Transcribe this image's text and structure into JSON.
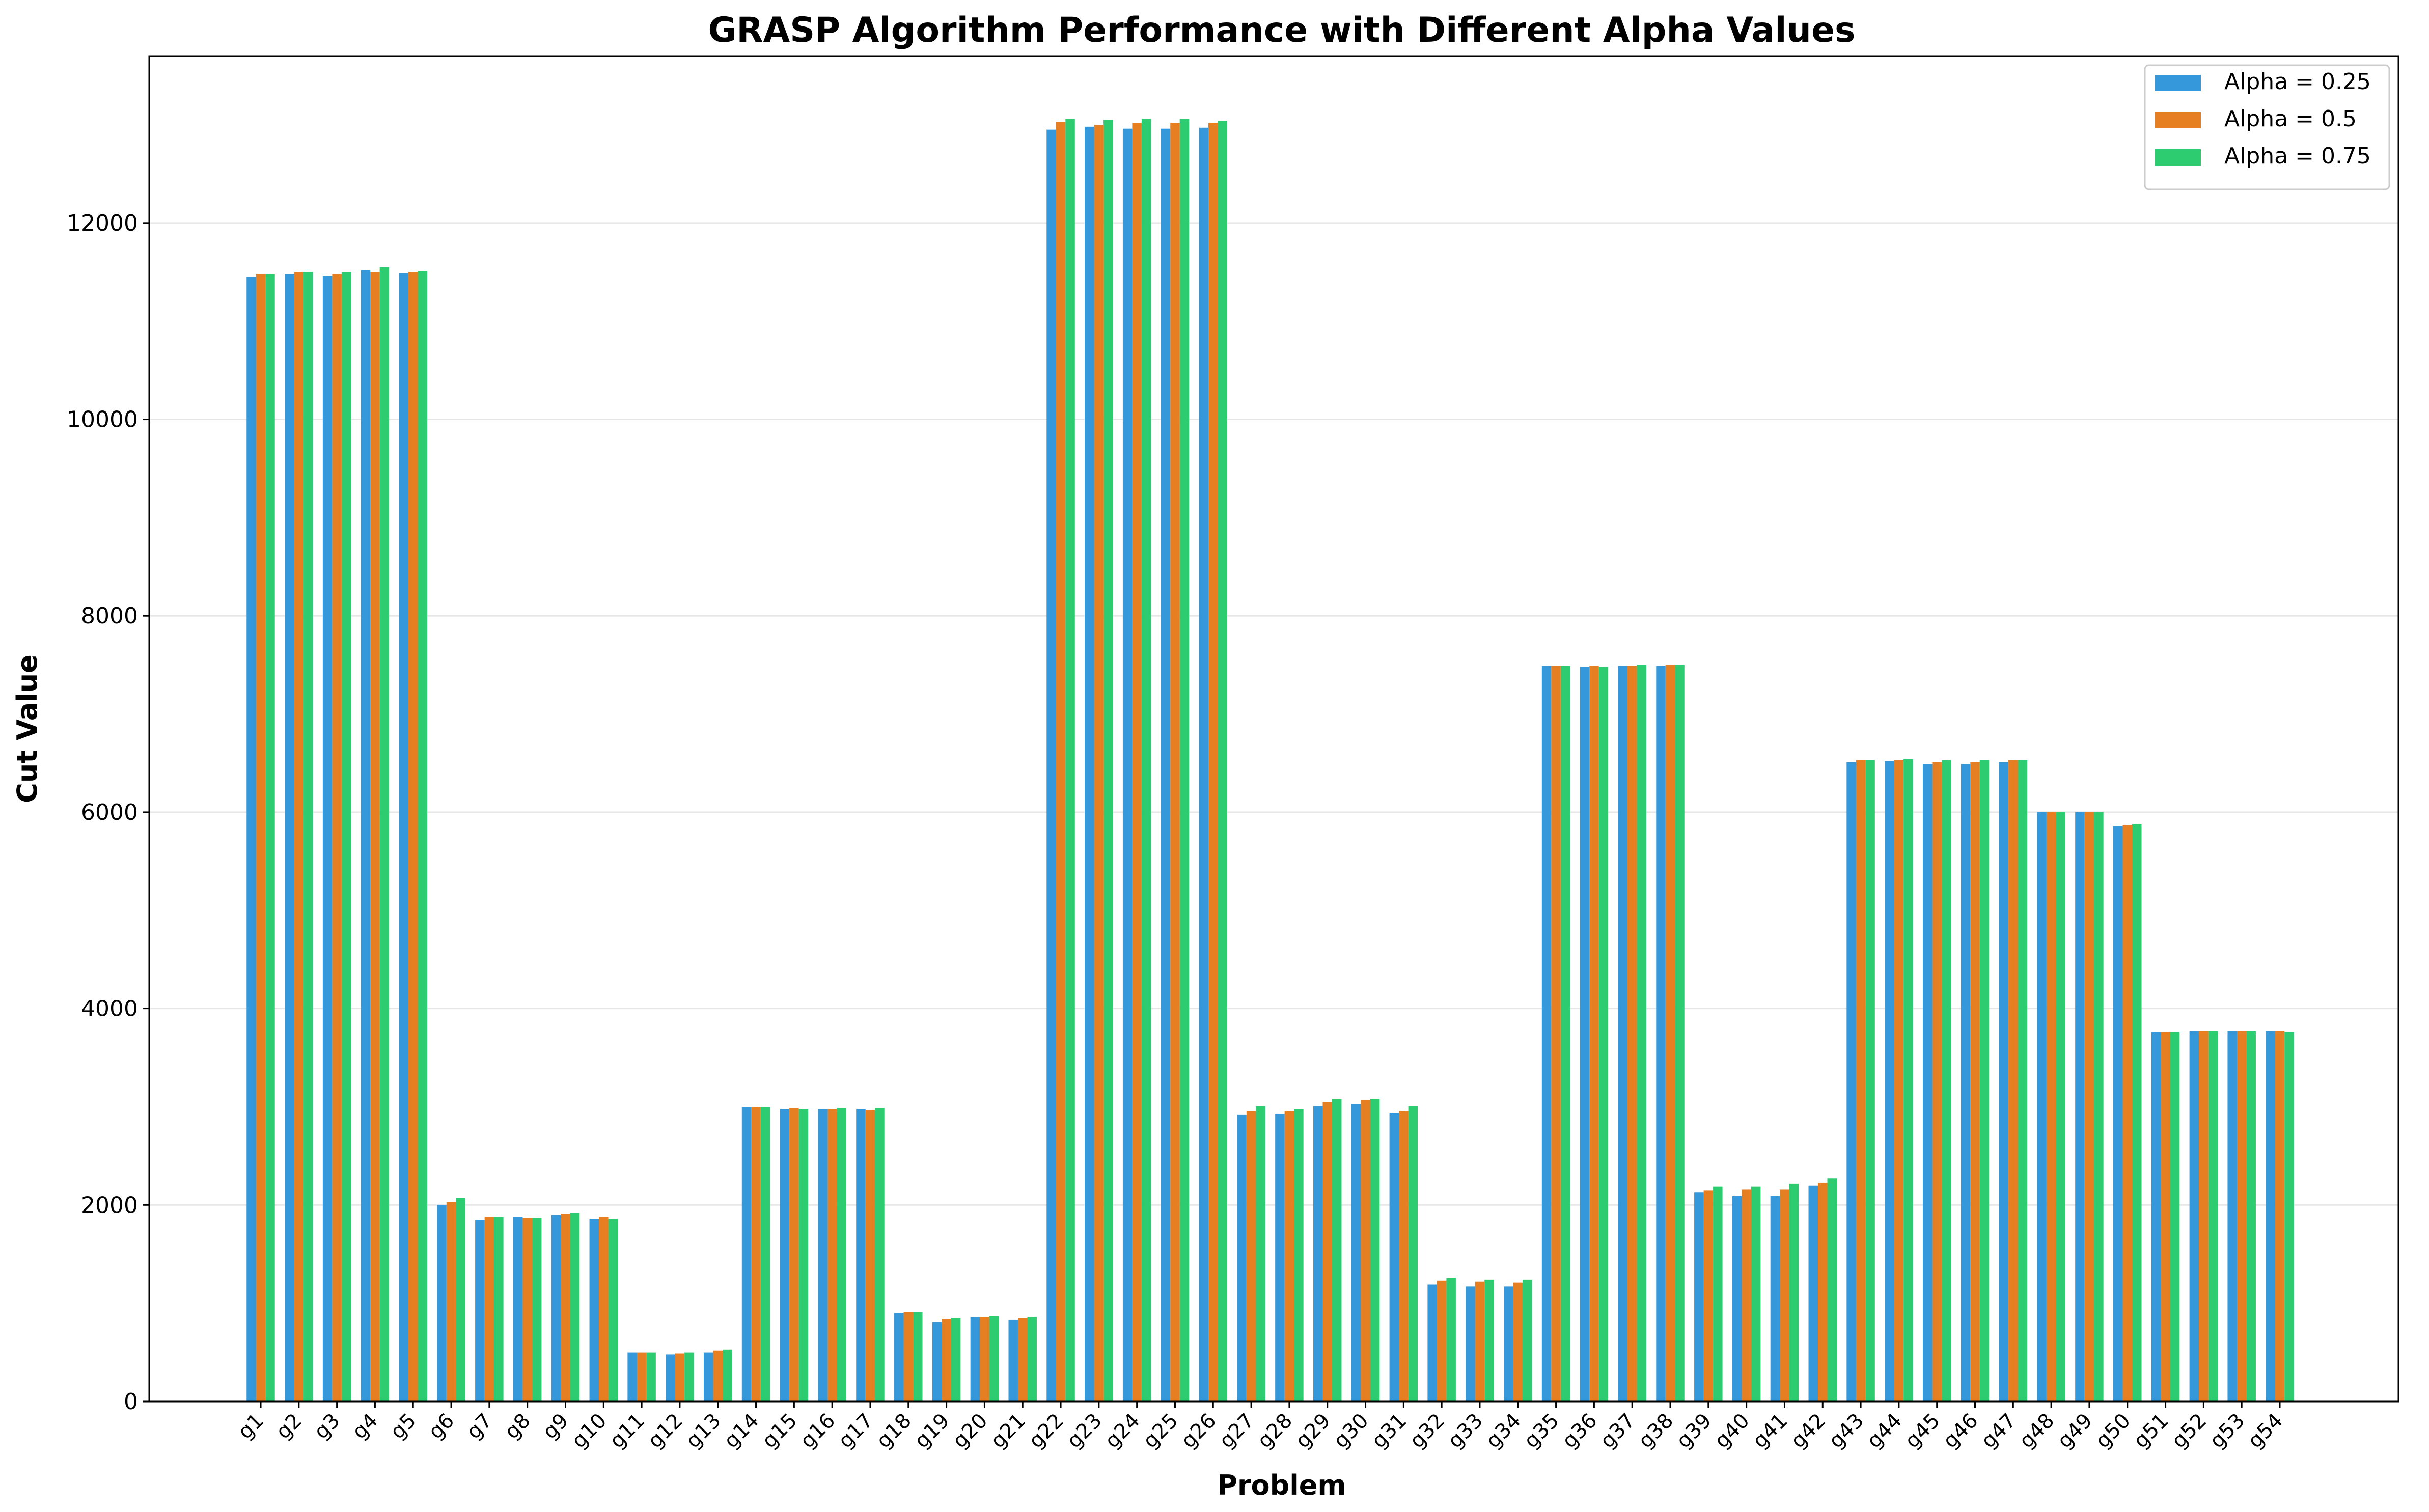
{
  "chart_data": {
    "type": "bar",
    "title": "GRASP Algorithm Performance with Different Alpha Values",
    "xlabel": "Problem",
    "ylabel": "Cut Value",
    "ylim": [
      0,
      13700
    ],
    "yticks": [
      0,
      2000,
      4000,
      6000,
      8000,
      10000,
      12000
    ],
    "grid": "horizontal",
    "legend_position": "top-right",
    "categories": [
      "g1",
      "g2",
      "g3",
      "g4",
      "g5",
      "g6",
      "g7",
      "g8",
      "g9",
      "g10",
      "g11",
      "g12",
      "g13",
      "g14",
      "g15",
      "g16",
      "g17",
      "g18",
      "g19",
      "g20",
      "g21",
      "g22",
      "g23",
      "g24",
      "g25",
      "g26",
      "g27",
      "g28",
      "g29",
      "g30",
      "g31",
      "g32",
      "g33",
      "g34",
      "g35",
      "g36",
      "g37",
      "g38",
      "g39",
      "g40",
      "g41",
      "g42",
      "g43",
      "g44",
      "g45",
      "g46",
      "g47",
      "g48",
      "g49",
      "g50",
      "g51",
      "g52",
      "g53",
      "g54"
    ],
    "series": [
      {
        "name": "Alpha = 0.25",
        "color": "#3498db",
        "values": [
          11450,
          11480,
          11460,
          11520,
          11490,
          2000,
          1850,
          1880,
          1900,
          1860,
          500,
          480,
          500,
          3000,
          2980,
          2980,
          2980,
          900,
          810,
          860,
          830,
          12950,
          12980,
          12960,
          12960,
          12970,
          2920,
          2930,
          3010,
          3030,
          2940,
          1190,
          1170,
          1170,
          7490,
          7480,
          7490,
          7490,
          2130,
          2090,
          2090,
          2200,
          6510,
          6520,
          6490,
          6490,
          6510,
          6000,
          6000,
          5860,
          3760,
          3770,
          3770,
          3770
        ]
      },
      {
        "name": "Alpha = 0.5",
        "color": "#e67e22",
        "values": [
          11480,
          11500,
          11480,
          11500,
          11500,
          2030,
          1880,
          1870,
          1910,
          1880,
          500,
          490,
          520,
          3000,
          2990,
          2980,
          2970,
          910,
          840,
          860,
          850,
          13030,
          13000,
          13020,
          13020,
          13020,
          2960,
          2960,
          3050,
          3070,
          2960,
          1230,
          1220,
          1210,
          7490,
          7490,
          7490,
          7500,
          2150,
          2160,
          2160,
          2230,
          6530,
          6530,
          6510,
          6510,
          6530,
          6000,
          6000,
          5870,
          3760,
          3770,
          3770,
          3770
        ]
      },
      {
        "name": "Alpha = 0.75",
        "color": "#2ecc71",
        "values": [
          11480,
          11500,
          11500,
          11550,
          11510,
          2070,
          1880,
          1870,
          1920,
          1860,
          500,
          500,
          530,
          3000,
          2980,
          2990,
          2990,
          910,
          850,
          870,
          860,
          13060,
          13050,
          13060,
          13060,
          13040,
          3010,
          2980,
          3080,
          3080,
          3010,
          1260,
          1240,
          1240,
          7490,
          7480,
          7500,
          7500,
          2190,
          2190,
          2220,
          2270,
          6530,
          6540,
          6530,
          6530,
          6530,
          6000,
          6000,
          5880,
          3760,
          3770,
          3770,
          3760
        ]
      }
    ]
  }
}
